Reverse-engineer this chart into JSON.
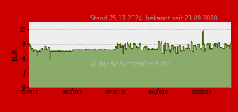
{
  "title": "Stand 25.11.2024, bekannt seit 23.09.2010",
  "ylabel": "EUR",
  "watermark": "© by Schottenland.de",
  "outer_bg_color": "#cc0000",
  "plot_bg_color": "#eeeeee",
  "fill_color": "#8aab6a",
  "line_color": "#3a5a00",
  "grid_color": "#bbbbbb",
  "title_color": "#999999",
  "watermark_color": "#c0c0c0",
  "ylabel_color": "#000000",
  "ylim": [
    0,
    13.5
  ],
  "yticks": [
    0,
    3,
    6,
    9,
    12
  ],
  "xtick_labels": [
    "09/2010",
    "08/2013",
    "07/2016",
    "04/2019",
    "03/2022"
  ],
  "xtick_positions": [
    0.0,
    0.214,
    0.428,
    0.642,
    0.856
  ]
}
